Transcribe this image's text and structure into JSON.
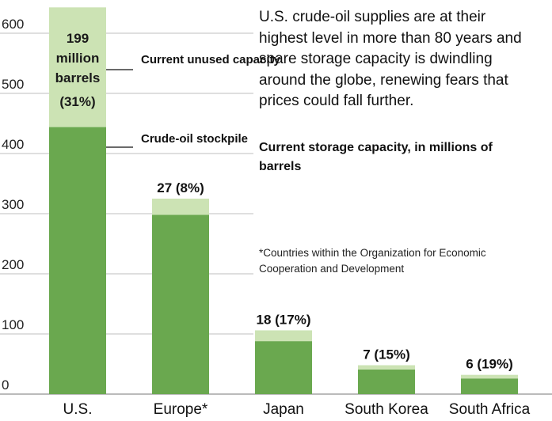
{
  "description": "U.S. crude-oil supplies are at their highest level in more than 80 years and spare storage capacity is dwindling around the globe, renewing fears that prices could fall further.",
  "subtitle": "Current storage capacity, in millions of barrels",
  "footnote": "*Countries within the Organization for Economic Cooperation and Development",
  "annotations": {
    "unused": "Current unused capacity",
    "stockpile": "Crude-oil stockpile",
    "us_label_lines": [
      "199",
      "million",
      "barrels",
      "(31%)"
    ]
  },
  "colors": {
    "stockpile": "#6aa84f",
    "unused": "#cce3b4",
    "grid": "#bfbfbf"
  },
  "chart_data": {
    "type": "bar",
    "stacked": true,
    "categories": [
      "U.S.",
      "Europe*",
      "Japan",
      "South Korea",
      "South Africa"
    ],
    "series": [
      {
        "name": "Crude-oil stockpile",
        "values": [
          444,
          298,
          88,
          41,
          26
        ]
      },
      {
        "name": "Current unused capacity",
        "values": [
          199,
          27,
          18,
          7,
          6
        ]
      }
    ],
    "data_labels": [
      "199 million barrels (31%)",
      "27 (8%)",
      "18 (17%)",
      "7 (15%)",
      "6 (19%)"
    ],
    "yticks": [
      0,
      100,
      200,
      300,
      400,
      500,
      600
    ],
    "ylim": [
      0,
      650
    ],
    "grid": true
  }
}
